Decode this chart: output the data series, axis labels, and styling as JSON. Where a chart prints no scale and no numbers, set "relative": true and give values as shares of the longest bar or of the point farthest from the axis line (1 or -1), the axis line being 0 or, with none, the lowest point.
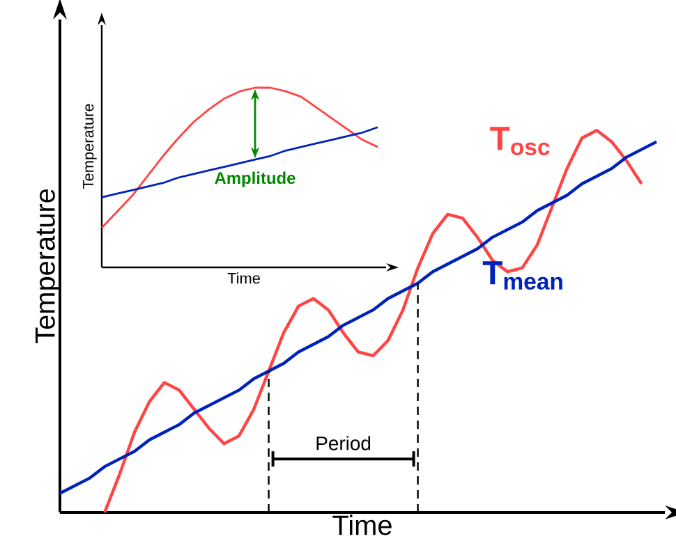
{
  "chart_data": [
    {
      "type": "line",
      "relative": true,
      "xlabel": "Time",
      "ylabel": "Temperature",
      "categories": [
        null,
        null,
        null,
        null,
        null,
        null,
        null,
        null,
        null,
        null,
        null,
        null,
        null,
        null,
        null,
        null,
        null,
        null,
        null,
        null,
        null,
        null,
        null,
        null,
        null,
        null,
        null,
        null,
        null,
        null,
        null,
        null,
        null,
        null,
        null,
        null,
        null,
        null,
        null,
        null,
        null
      ],
      "series": [
        {
          "name": "T$_{osc}$",
          "color": "#ff4444",
          "values": [
            null,
            null,
            null,
            0,
            0.1,
            0.21,
            0.29,
            0.34,
            0.32,
            0.27,
            0.22,
            0.18,
            0.2,
            0.27,
            0.37,
            0.47,
            0.54,
            0.56,
            0.53,
            0.47,
            0.42,
            0.41,
            0.45,
            0.53,
            0.64,
            0.73,
            0.78,
            0.77,
            0.72,
            0.66,
            0.63,
            0.64,
            0.7,
            0.8,
            0.9,
            0.98,
            1,
            0.97,
            0.92,
            0.86,
            null
          ]
        },
        {
          "name": "T$_{mean}$",
          "color": "#0022bb",
          "values": [
            0.05,
            0.07,
            0.09,
            0.12,
            0.14,
            0.16,
            0.19,
            0.21,
            0.23,
            0.26,
            0.28,
            0.3,
            0.32,
            0.35,
            0.37,
            0.39,
            0.42,
            0.44,
            0.46,
            0.49,
            0.51,
            0.53,
            0.56,
            0.58,
            0.6,
            0.63,
            0.65,
            0.67,
            0.69,
            0.72,
            0.74,
            0.76,
            0.79,
            0.81,
            0.83,
            0.86,
            0.88,
            0.9,
            0.93,
            0.95,
            0.97
          ]
        }
      ],
      "annotations": [
        "Period"
      ]
    },
    {
      "type": "line",
      "relative": true,
      "xlabel": "Time",
      "ylabel": "Temperature",
      "categories": [
        null,
        null,
        null,
        null,
        null,
        null,
        null,
        null,
        null,
        null,
        null,
        null,
        null,
        null,
        null,
        null,
        null,
        null,
        null
      ],
      "series": [
        {
          "color": "#ff4444",
          "values": [
            0.22,
            0.31,
            0.4,
            0.51,
            0.62,
            0.72,
            0.81,
            0.88,
            0.94,
            0.98,
            1,
            1,
            0.98,
            0.95,
            0.89,
            0.83,
            0.77,
            0.71,
            0.67
          ]
        },
        {
          "color": "#0022bb",
          "values": [
            0.39,
            0.41,
            0.43,
            0.45,
            0.47,
            0.5,
            0.52,
            0.54,
            0.56,
            0.58,
            0.6,
            0.62,
            0.65,
            0.67,
            0.69,
            0.71,
            0.73,
            0.75,
            0.78
          ]
        }
      ],
      "annotations": [
        "Amplitude"
      ]
    }
  ]
}
